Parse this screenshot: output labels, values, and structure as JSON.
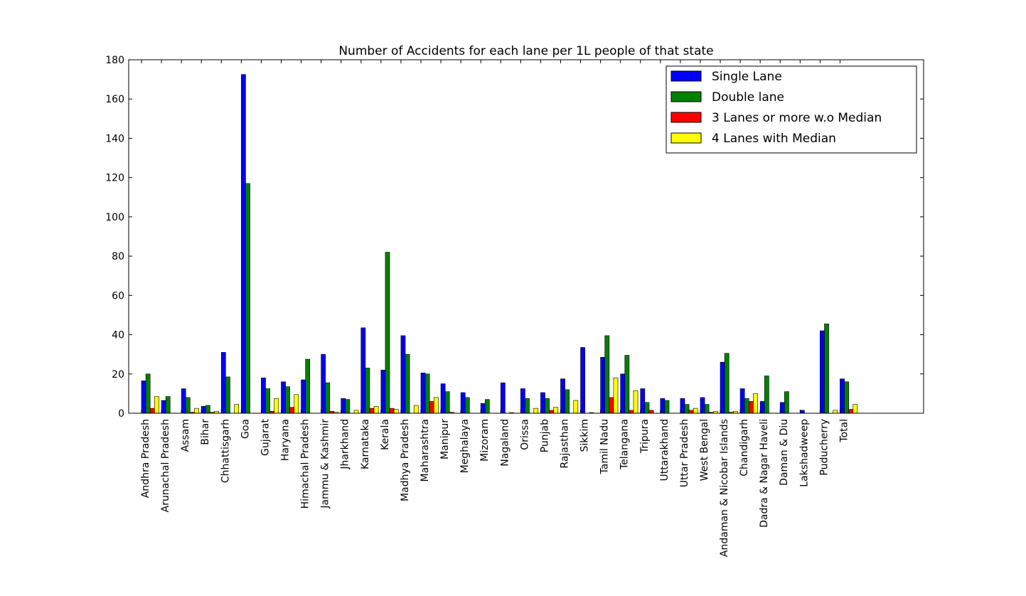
{
  "chart_data": {
    "type": "bar",
    "title": "Number of Accidents for each lane per 1L people of that state",
    "xlabel": "",
    "ylabel": "",
    "ylim": [
      0,
      180
    ],
    "yticks": [
      "0",
      "20",
      "40",
      "60",
      "80",
      "100",
      "120",
      "140",
      "160",
      "180"
    ],
    "grid": false,
    "legend_position": "top-right",
    "categories": [
      "Andhra Pradesh",
      "Arunachal Pradesh",
      "Assam",
      "Bihar",
      "Chhattisgarh",
      "Goa",
      "Gujarat",
      "Haryana",
      "Himachal Pradesh",
      "Jammu & Kashmir",
      "Jharkhand",
      "Karnataka",
      "Kerala",
      "Madhya Pradesh",
      "Maharashtra",
      "Manipur",
      "Meghalaya",
      "Mizoram",
      "Nagaland",
      "Orissa",
      "Punjab",
      "Rajasthan",
      "Sikkim",
      "Tamil Nadu",
      "Telangana",
      "Tripura",
      "Uttarakhand",
      "Uttar Pradesh",
      "West Bengal",
      "Andaman & Nicobar Islands",
      "Chandigarh",
      "Dadra & Nagar Haveli",
      "Daman & Diu",
      "Lakshadweep",
      "Puducherry",
      "Total"
    ],
    "series": [
      {
        "name": "Single Lane",
        "color": "#0000ff",
        "values": [
          16.5,
          6.5,
          12.5,
          3.5,
          31,
          172.5,
          18,
          16,
          17,
          30,
          7.5,
          43.5,
          22,
          39.5,
          20.5,
          15,
          10.5,
          5,
          15.5,
          12.5,
          10.5,
          17.5,
          33.5,
          28.5,
          20,
          12.5,
          7.5,
          7.5,
          8,
          26,
          12.5,
          6,
          5.5,
          1.5,
          42,
          17.5
        ]
      },
      {
        "name": "Double lane",
        "color": "#008000",
        "values": [
          20,
          8.5,
          8,
          4,
          18.5,
          117,
          12.5,
          13.5,
          27.5,
          15.5,
          7,
          23,
          82,
          30,
          20,
          11,
          8,
          7,
          0,
          7.5,
          7.5,
          12,
          0,
          39.5,
          29.5,
          5.5,
          6.5,
          4.5,
          4.5,
          30.5,
          7.5,
          19,
          11,
          0,
          45.5,
          16
        ]
      },
      {
        "name": "3 Lanes or more w.o Median",
        "color": "#ff0000",
        "values": [
          2.5,
          0,
          0.5,
          0.5,
          0,
          0,
          1,
          3,
          0,
          1,
          0,
          2.5,
          2.5,
          0,
          6,
          0.5,
          0,
          0,
          0.3,
          0,
          1.5,
          0,
          0.3,
          8,
          1.5,
          1.5,
          0,
          1.5,
          0.5,
          0.5,
          6,
          0,
          0,
          0,
          0,
          2
        ]
      },
      {
        "name": "4 Lanes with Median",
        "color": "#ffff00",
        "values": [
          8.5,
          0,
          2.5,
          1,
          4.5,
          0,
          7.5,
          9.5,
          0,
          0.5,
          1.5,
          3.5,
          2,
          4,
          8,
          0,
          0,
          0,
          0,
          2.5,
          3,
          6.5,
          0,
          18,
          11.5,
          0,
          0,
          2.5,
          1,
          1,
          10,
          0,
          0,
          0,
          1.5,
          4.5
        ]
      }
    ]
  }
}
